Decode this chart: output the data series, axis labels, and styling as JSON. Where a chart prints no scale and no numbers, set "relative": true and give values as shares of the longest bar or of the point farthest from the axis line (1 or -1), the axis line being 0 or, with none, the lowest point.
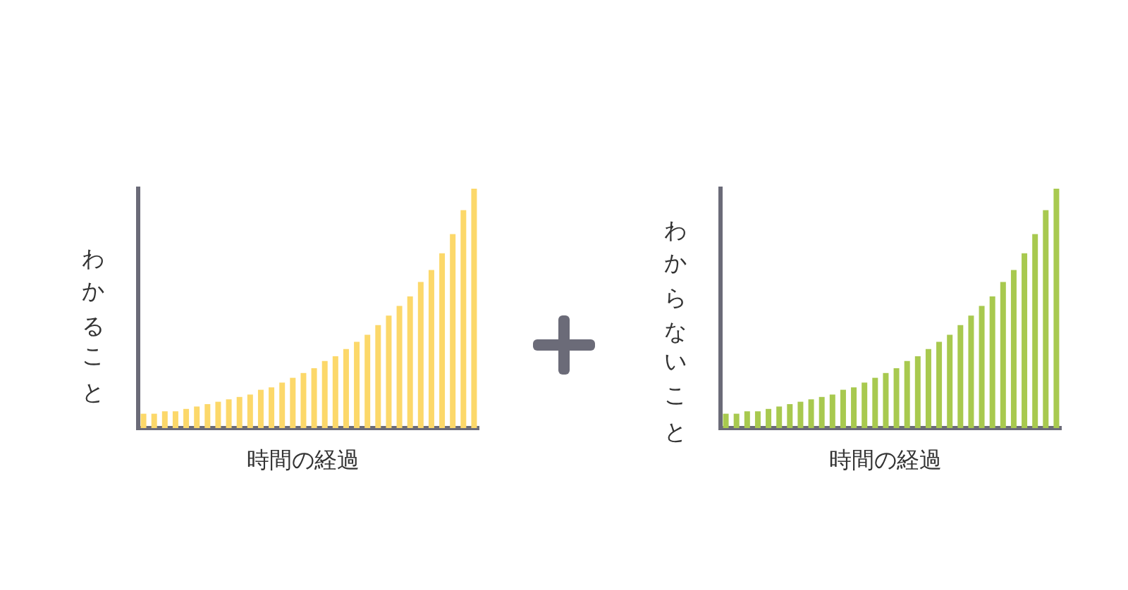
{
  "chart_data": [
    {
      "type": "bar",
      "ylabel": "わかること",
      "xlabel": "時間の経過",
      "relative": true,
      "color": "#fcd86a",
      "categories": [
        null,
        null,
        null,
        null,
        null,
        null,
        null,
        null,
        null,
        null,
        null,
        null,
        null,
        null,
        null,
        null,
        null,
        null,
        null,
        null,
        null,
        null,
        null,
        null,
        null,
        null,
        null,
        null,
        null,
        null,
        null,
        null
      ],
      "values": [
        0.06,
        0.06,
        0.07,
        0.07,
        0.08,
        0.09,
        0.1,
        0.11,
        0.12,
        0.13,
        0.14,
        0.16,
        0.17,
        0.19,
        0.21,
        0.23,
        0.25,
        0.28,
        0.3,
        0.33,
        0.36,
        0.39,
        0.43,
        0.47,
        0.51,
        0.55,
        0.61,
        0.66,
        0.73,
        0.81,
        0.91,
        1
      ]
    },
    {
      "type": "bar",
      "ylabel": "わからないこと",
      "xlabel": "時間の経過",
      "relative": true,
      "color": "#a8c94f",
      "categories": [
        null,
        null,
        null,
        null,
        null,
        null,
        null,
        null,
        null,
        null,
        null,
        null,
        null,
        null,
        null,
        null,
        null,
        null,
        null,
        null,
        null,
        null,
        null,
        null,
        null,
        null,
        null,
        null,
        null,
        null,
        null,
        null
      ],
      "values": [
        0.06,
        0.06,
        0.07,
        0.07,
        0.08,
        0.09,
        0.1,
        0.11,
        0.12,
        0.13,
        0.14,
        0.16,
        0.17,
        0.19,
        0.21,
        0.23,
        0.25,
        0.28,
        0.3,
        0.33,
        0.36,
        0.39,
        0.43,
        0.47,
        0.51,
        0.55,
        0.61,
        0.66,
        0.73,
        0.81,
        0.91,
        1
      ]
    }
  ]
}
